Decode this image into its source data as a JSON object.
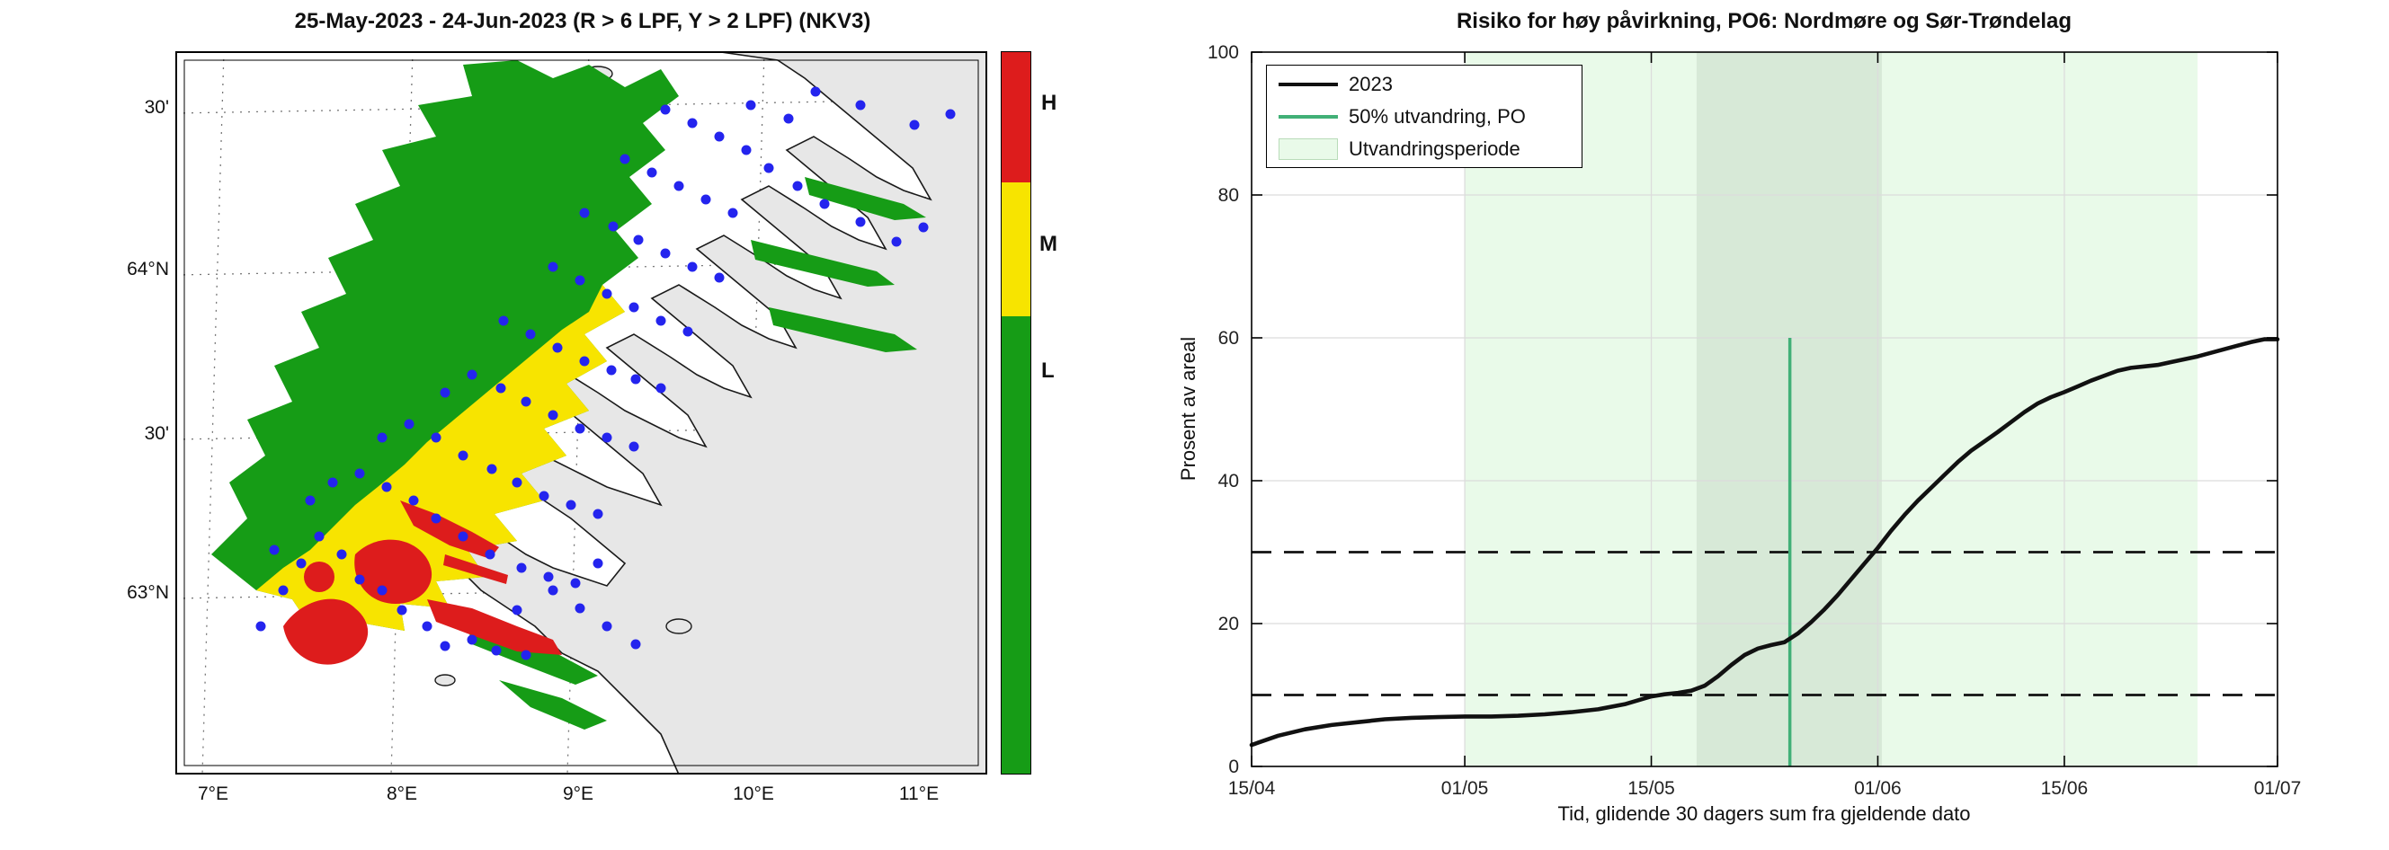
{
  "figure": {
    "background": "#ffffff"
  },
  "colors": {
    "risk_high_red": "#dd1c1c",
    "risk_medium_yellow": "#f7e400",
    "risk_low_green": "#169c16",
    "farm_dot_blue": "#2424ee",
    "land_gray": "#e7e7e7",
    "coast_black": "#1a1a1a",
    "series_2023_black": "#111111",
    "line_50pct_teal": "#41b077",
    "band_light_green": "#e9fae9",
    "band_overlap_green": "#d7e9d7",
    "grid_gray": "#dcdcdc"
  },
  "map_panel": {
    "title": "25-May-2023  - 24-Jun-2023  (R > 6 LPF, Y > 2 LPF) (NKV3)",
    "lat_tick_labels": [
      "30'",
      "64°N",
      "30'",
      "63°N"
    ],
    "lon_tick_labels": [
      "7°E",
      "8°E",
      "9°E",
      "10°E",
      "11°E"
    ],
    "colorbar": {
      "labels": [
        "H",
        "M",
        "L"
      ],
      "segment_colors": [
        "#dd1c1c",
        "#f7e400",
        "#169c16"
      ],
      "segment_meanings": [
        "high-risk",
        "medium-risk",
        "low-risk"
      ]
    }
  },
  "chart_data": {
    "type": "line",
    "title": "Risiko for høy påvirkning, PO6: Nordmøre og Sør-Trøndelag",
    "xlabel": "Tid, glidende 30 dagers sum fra gjeldende dato",
    "ylabel": "Prosent av areal",
    "ylim": [
      0,
      100
    ],
    "y_ticks": [
      0,
      20,
      40,
      60,
      80,
      100
    ],
    "x_tick_labels": [
      "15/04",
      "01/05",
      "15/05",
      "01/06",
      "15/06",
      "01/07"
    ],
    "x_tick_days": [
      0,
      16,
      30,
      47,
      61,
      77
    ],
    "x_axis_days_range": [
      0,
      77
    ],
    "grid": true,
    "legend": {
      "position": "top-left",
      "entries": [
        "2023",
        "50% utvandring, PO",
        "Utvandringsperiode"
      ],
      "sample_types": [
        "line-black",
        "line-teal",
        "patch-green"
      ]
    },
    "reference_lines_y": [
      10,
      30
    ],
    "migration_50pct_line": {
      "date": "25/05",
      "day": 40.4,
      "y_top_value": 60
    },
    "utvandringsperiode_band": {
      "start_date": "01/05",
      "end_date": "25/06",
      "start_day": 16,
      "end_day": 71
    },
    "overlap_band": {
      "start_date": "18/05",
      "end_date": "01/06",
      "start_day": 33.4,
      "end_day": 47.3
    },
    "series": [
      {
        "name": "2023",
        "x_days": [
          0,
          2,
          4,
          6,
          8,
          10,
          12,
          14,
          16,
          18,
          20,
          22,
          24,
          26,
          28,
          30,
          31,
          32,
          33,
          34,
          35,
          36,
          37,
          38,
          39,
          40,
          41,
          42,
          43,
          44,
          45,
          46,
          47,
          48,
          49,
          50,
          51,
          52,
          53,
          54,
          55,
          56,
          57,
          58,
          59,
          60,
          61,
          62,
          63,
          64,
          65,
          66,
          67,
          68,
          69,
          70,
          71,
          72,
          73,
          74,
          75,
          76,
          77
        ],
        "y_percent": [
          3.0,
          4.3,
          5.2,
          5.8,
          6.2,
          6.6,
          6.8,
          6.9,
          7.0,
          7.0,
          7.1,
          7.3,
          7.6,
          8.0,
          8.7,
          9.8,
          10.1,
          10.3,
          10.6,
          11.3,
          12.6,
          14.2,
          15.6,
          16.5,
          17.0,
          17.4,
          18.6,
          20.2,
          22.0,
          24.0,
          26.2,
          28.4,
          30.6,
          33.0,
          35.2,
          37.2,
          39.0,
          40.8,
          42.6,
          44.2,
          45.5,
          46.8,
          48.2,
          49.6,
          50.8,
          51.7,
          52.4,
          53.2,
          54.0,
          54.7,
          55.4,
          55.8,
          56.0,
          56.2,
          56.6,
          57.0,
          57.4,
          57.9,
          58.4,
          58.9,
          59.4,
          59.8,
          59.8
        ]
      }
    ]
  }
}
